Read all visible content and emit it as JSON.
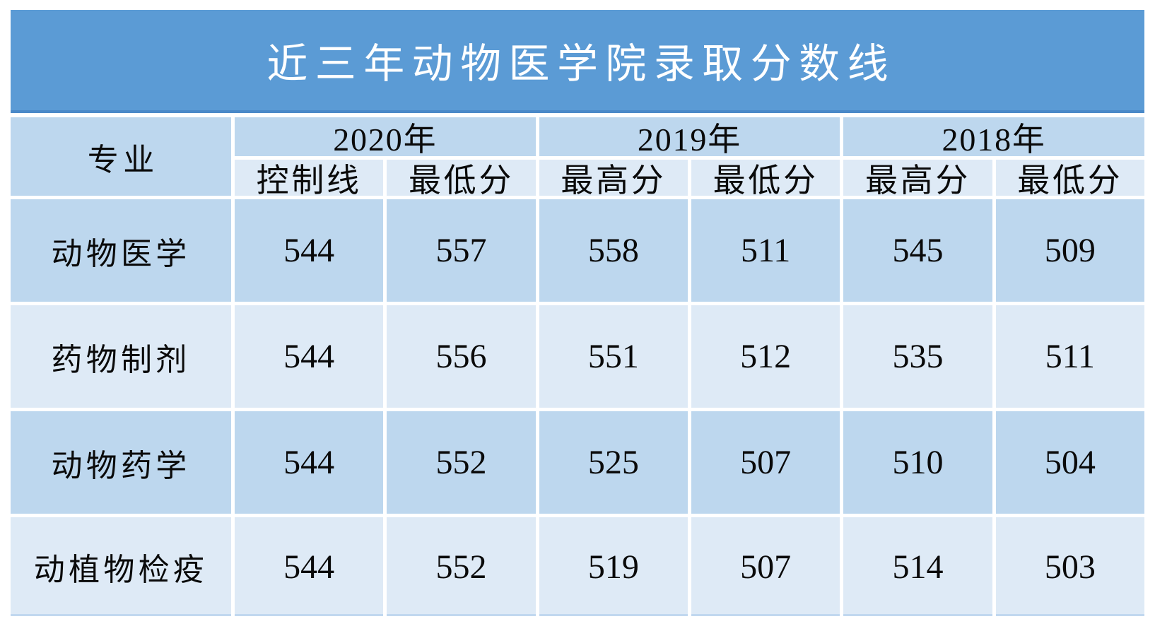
{
  "title": "近三年动物医学院录取分数线",
  "colors": {
    "title_background": "#5B9BD5",
    "title_border_bottom": "#4A89C8",
    "band_medium": "#BDD7EE",
    "band_light": "#DEEAF6",
    "title_text": "#FFFFFF",
    "cell_text": "#0A0A0A"
  },
  "table": {
    "corner_header": "专业",
    "year_groups": [
      {
        "year": "2020年",
        "sub": [
          "控制线",
          "最低分"
        ]
      },
      {
        "year": "2019年",
        "sub": [
          "最高分",
          "最低分"
        ]
      },
      {
        "year": "2018年",
        "sub": [
          "最高分",
          "最低分"
        ]
      }
    ],
    "rows": [
      {
        "major": "动物医学",
        "scores": [
          "544",
          "557",
          "558",
          "511",
          "545",
          "509"
        ]
      },
      {
        "major": "药物制剂",
        "scores": [
          "544",
          "556",
          "551",
          "512",
          "535",
          "511"
        ]
      },
      {
        "major": "动物药学",
        "scores": [
          "544",
          "552",
          "525",
          "507",
          "510",
          "504"
        ]
      },
      {
        "major": "动植物检疫",
        "scores": [
          "544",
          "552",
          "519",
          "507",
          "514",
          "503"
        ]
      }
    ]
  },
  "chart_data": {
    "type": "table",
    "title": "近三年动物医学院录取分数线",
    "columns": [
      "专业",
      "2020年 控制线",
      "2020年 最低分",
      "2019年 最高分",
      "2019年 最低分",
      "2018年 最高分",
      "2018年 最低分"
    ],
    "rows": [
      [
        "动物医学",
        544,
        557,
        558,
        511,
        545,
        509
      ],
      [
        "药物制剂",
        544,
        556,
        551,
        512,
        535,
        511
      ],
      [
        "动物药学",
        544,
        552,
        525,
        507,
        510,
        504
      ],
      [
        "动植物检疫",
        544,
        552,
        519,
        507,
        514,
        503
      ]
    ]
  }
}
